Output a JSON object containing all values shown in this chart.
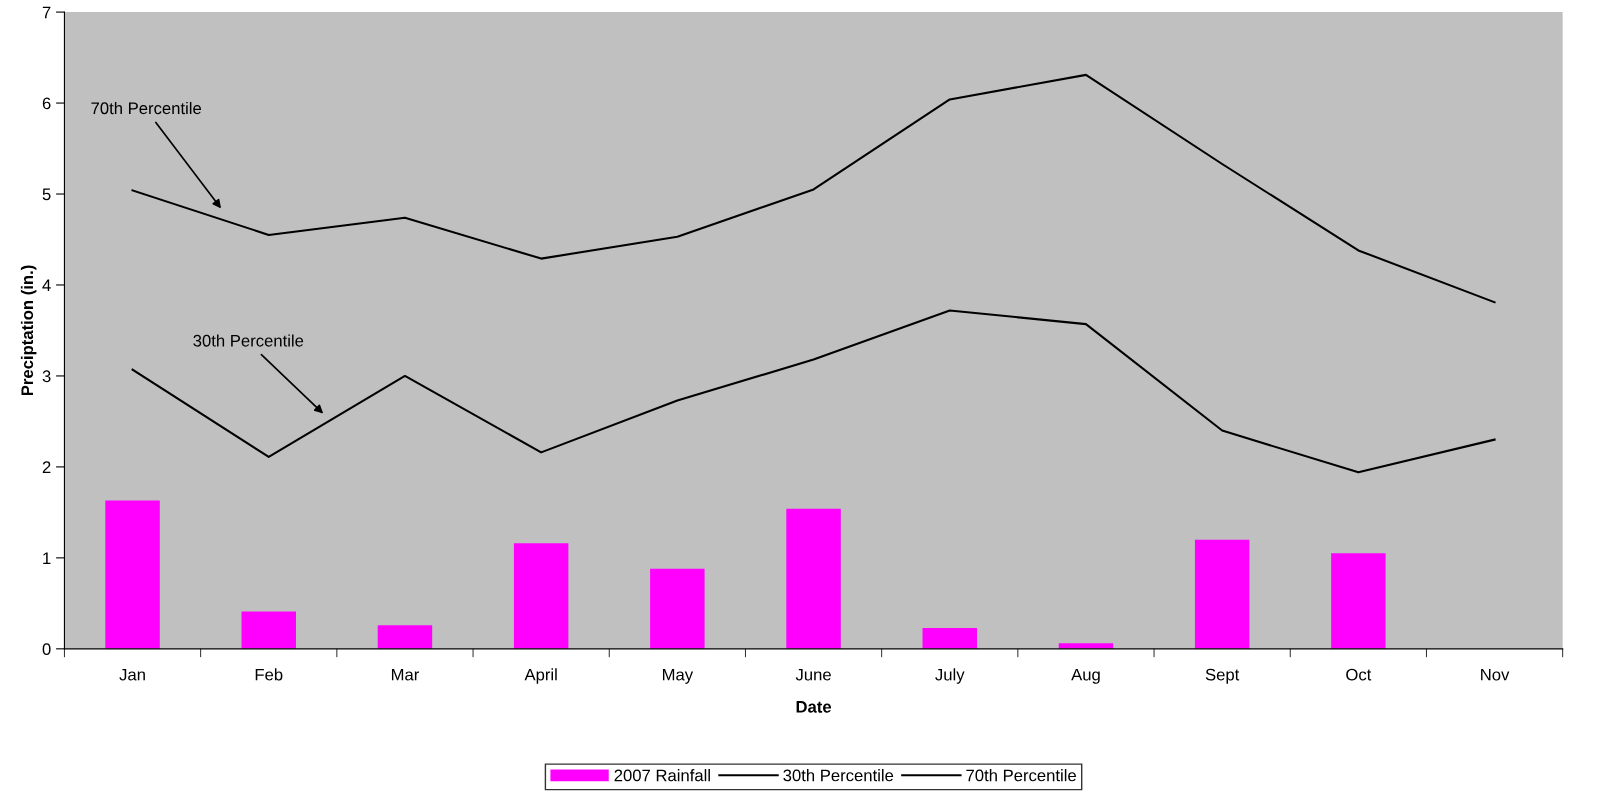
{
  "chart_data": {
    "type": "bar",
    "xlabel": "Date",
    "ylabel": "Preciptation (in.)",
    "categories": [
      "Jan",
      "Feb",
      "Mar",
      "April",
      "May",
      "June",
      "July",
      "Aug",
      "Sept",
      "Oct",
      "Nov"
    ],
    "series": [
      {
        "name": "2007 Rainfall",
        "color": "#ff00ff",
        "values": [
          1.63,
          0.41,
          0.26,
          1.16,
          0.88,
          1.54,
          0.23,
          0.06,
          1.2,
          1.05,
          null
        ]
      },
      {
        "name": "30th Percentile",
        "type": "line",
        "color": "#000000",
        "values": [
          3.07,
          2.11,
          3.0,
          2.16,
          2.73,
          3.18,
          3.72,
          3.57,
          2.4,
          1.94,
          2.3
        ]
      },
      {
        "name": "70th Percentile",
        "type": "line",
        "color": "#000000",
        "values": [
          5.04,
          4.55,
          4.74,
          4.29,
          4.53,
          5.05,
          6.04,
          6.31,
          5.33,
          4.38,
          3.81
        ]
      }
    ],
    "annotations": [
      "70th Percentile",
      "30th Percentile"
    ],
    "ylim": [
      0,
      7
    ],
    "yticks": [
      0,
      1,
      2,
      3,
      4,
      5,
      6,
      7
    ],
    "grid": false,
    "legend": "bottom"
  }
}
